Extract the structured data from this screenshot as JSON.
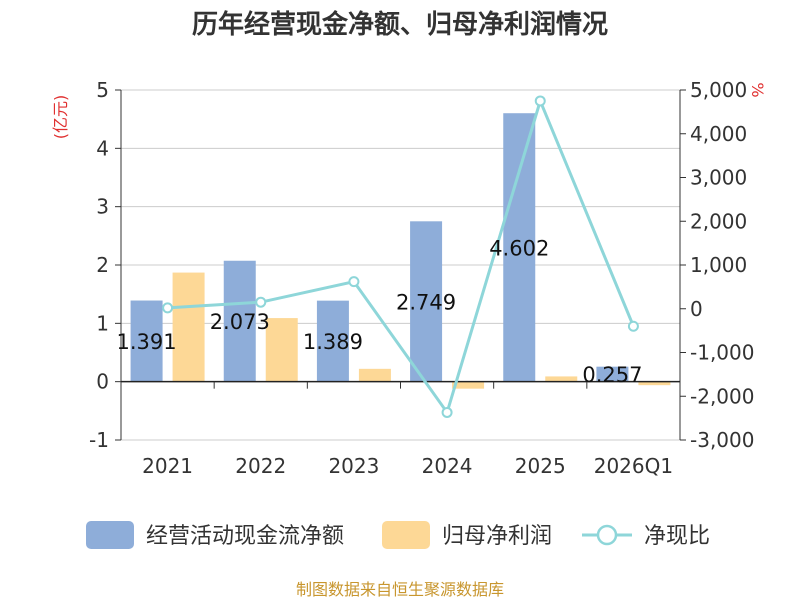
{
  "chart_data": {
    "type": "bar",
    "title": "历年经营现金净额、归母净利润情况",
    "categories": [
      "2021",
      "2022",
      "2023",
      "2024",
      "2025",
      "2026Q1"
    ],
    "y_left": {
      "unit": "(亿元)",
      "ticks": [
        "5",
        "4",
        "3",
        "2",
        "1",
        "0",
        "-1"
      ],
      "ylim": [
        -1,
        5
      ]
    },
    "y_right": {
      "unit": "%",
      "ticks": [
        "5,000",
        "4,000",
        "3,000",
        "2,000",
        "1,000",
        "0",
        "-1,000",
        "-2,000",
        "-3,000"
      ],
      "ylim": [
        -3000,
        5000
      ]
    },
    "series": [
      {
        "name": "经营活动现金流净额",
        "kind": "bar",
        "axis": "left",
        "color": "#8eadd9",
        "values": [
          1.391,
          2.073,
          1.389,
          2.749,
          4.602,
          0.257
        ],
        "labels": [
          "1.391",
          "2.073",
          "1.389",
          "2.749",
          "4.602",
          "0.257"
        ]
      },
      {
        "name": "归母净利润",
        "kind": "bar",
        "axis": "left",
        "color": "#fdd896",
        "values": [
          1.87,
          1.09,
          0.22,
          -0.12,
          0.09,
          -0.06
        ]
      },
      {
        "name": "净现比",
        "kind": "line",
        "axis": "right",
        "color": "#8ed6d9",
        "values": [
          20,
          150,
          620,
          -2370,
          4750,
          -400
        ]
      }
    ],
    "grid": true,
    "legend_position": "bottom",
    "unit_color": "#e03030"
  },
  "source": {
    "text": "制图数据来自恒生聚源数据库",
    "color": "#c8962e"
  }
}
